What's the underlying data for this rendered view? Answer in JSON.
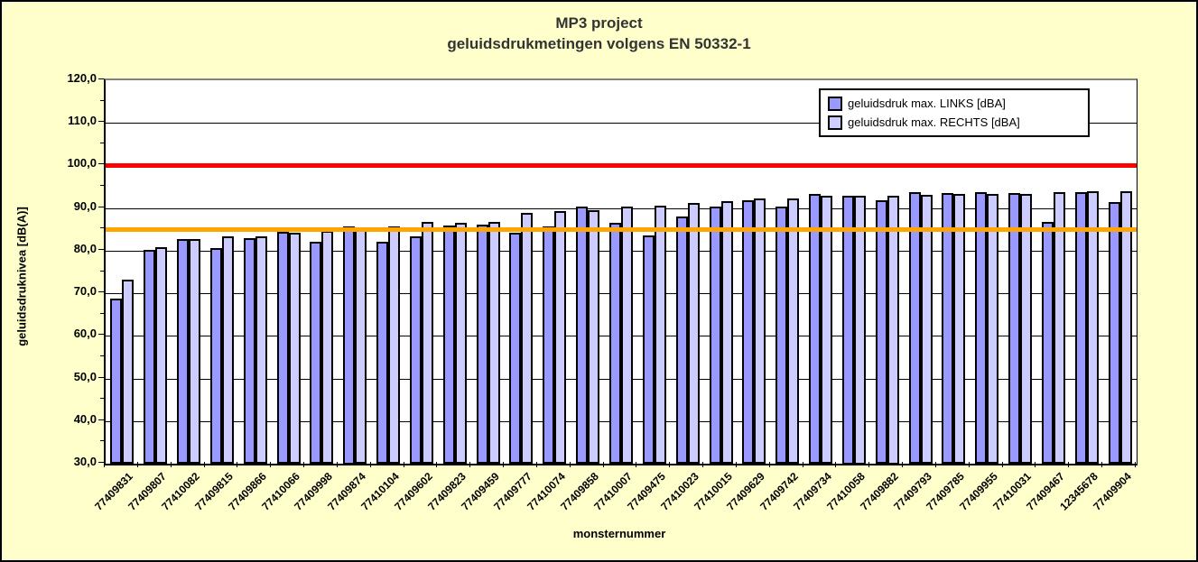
{
  "chart": {
    "title_line1": "MP3 project",
    "title_line2": "geluidsdrukmetingen volgens EN 50332-1"
  },
  "chart_data": {
    "type": "bar",
    "title": "MP3 project / geluidsdrukmetingen volgens EN 50332-1",
    "xlabel": "monsternummer",
    "ylabel": "geluidsdruknivea [dB(A)]",
    "ylim": [
      30,
      120
    ],
    "ytick_step": 10,
    "ytick_labels": [
      "120,0",
      "110,0",
      "100,0",
      "90,0",
      "80,0",
      "70,0",
      "60,0",
      "50,0",
      "40,0",
      "30,0"
    ],
    "grid": true,
    "legend_position": "top-right inside plot",
    "categories": [
      "77409831",
      "77409807",
      "77410082",
      "77409815",
      "77409866",
      "77410066",
      "77409998",
      "77409874",
      "77410104",
      "77409602",
      "77409823",
      "77409459",
      "77409777",
      "77410074",
      "77409858",
      "77410007",
      "77409475",
      "77410023",
      "77410015",
      "77409629",
      "77409742",
      "77409734",
      "77410058",
      "77409882",
      "77409793",
      "77409785",
      "77409955",
      "77410031",
      "77409467",
      "12345678",
      "77409904"
    ],
    "series": [
      {
        "name": "geluidsdruk max. LINKS [dBA]",
        "color": "#9999FF",
        "values": [
          68.8,
          80.1,
          82.8,
          80.7,
          82.9,
          84.5,
          82.0,
          85.8,
          82.0,
          83.3,
          85.9,
          86.1,
          84.2,
          85.6,
          90.4,
          86.6,
          83.6,
          88.0,
          90.4,
          91.8,
          90.4,
          93.3,
          93.0,
          91.8,
          93.7,
          93.6,
          93.8,
          93.5,
          86.7,
          93.7,
          91.5
        ]
      },
      {
        "name": "geluidsdruk max. RECHTS [dBA]",
        "color": "#CCCCFF",
        "values": [
          73.3,
          80.8,
          82.7,
          83.4,
          83.4,
          84.3,
          84.6,
          85.4,
          85.7,
          86.8,
          86.5,
          86.7,
          88.8,
          89.2,
          89.4,
          90.4,
          90.5,
          91.1,
          91.7,
          92.2,
          92.2,
          92.9,
          93.0,
          93.0,
          93.2,
          93.3,
          93.3,
          93.4,
          93.7,
          93.9,
          93.9
        ]
      }
    ],
    "reference_lines": [
      {
        "value": 100,
        "color": "#FF0000"
      },
      {
        "value": 85,
        "color": "#FFA500"
      }
    ]
  },
  "colors": {
    "background": "#FFFFCC",
    "plot_background": "#FFFFFF",
    "bar_border": "#000000",
    "gridline": "#000000",
    "plot_top_border": "#808080"
  }
}
